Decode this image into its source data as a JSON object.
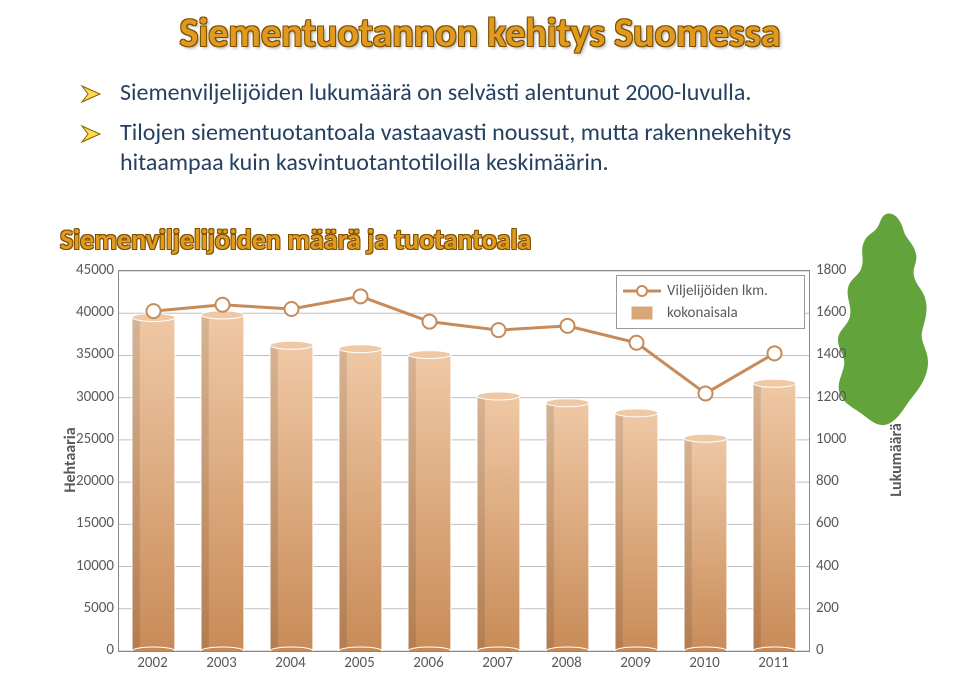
{
  "title": "Siementuotannon kehitys Suomessa",
  "bullets": [
    "Siemenviljelijöiden lukumäärä on selvästi alentunut 2000-luvulla.",
    "Tilojen siementuotantoala vastaavasti noussut, mutta rakennekehitys hitaampaa kuin kasvintuotantotiloilla keskimäärin."
  ],
  "subtitle": "Siemenviljelijöiden määrä ja tuotantoala",
  "chart": {
    "type": "bar+line",
    "categories": [
      "2002",
      "2003",
      "2004",
      "2005",
      "2006",
      "2007",
      "2008",
      "2009",
      "2010",
      "2011"
    ],
    "bars": {
      "label": "kokonaisala",
      "axis": "left",
      "values": [
        39500,
        39800,
        36200,
        35800,
        35100,
        30200,
        29400,
        28200,
        25200,
        31700
      ],
      "fill_top": "#efc8a5",
      "fill_bot": "#c88b58",
      "stroke": "#ffffff",
      "width_ratio": 0.62
    },
    "line": {
      "label": "Viljelijöiden lkm.",
      "axis": "right",
      "values": [
        1610,
        1640,
        1620,
        1680,
        1560,
        1520,
        1540,
        1460,
        1220,
        1410
      ],
      "stroke": "#c78b5a",
      "stroke_width": 3,
      "marker_r": 7,
      "marker_fill": "#ffffff",
      "marker_stroke": "#c78b5a"
    },
    "y_left": {
      "min": 0,
      "max": 45000,
      "step": 5000,
      "title": "Hehtaaria"
    },
    "y_right": {
      "min": 0,
      "max": 1800,
      "step": 200,
      "title": "Lukumäärä"
    },
    "grid_color": "#bfbfbf",
    "plot_border": "#888888",
    "background": "#ffffff",
    "label_color": "#595959",
    "label_fontsize": 15,
    "axis_title_fontsize": 16
  },
  "legend": {
    "items": [
      {
        "key": "line",
        "label": "Viljelijöiden lkm."
      },
      {
        "key": "bars",
        "label": "kokonaisala"
      }
    ]
  },
  "colors": {
    "title_fill": "#e29a1e",
    "title_outline": "#7a4f00",
    "bullet_text": "#254061",
    "arrow_fill": "#ffd954",
    "arrow_stroke": "#806000",
    "finland": "#62a33b"
  }
}
